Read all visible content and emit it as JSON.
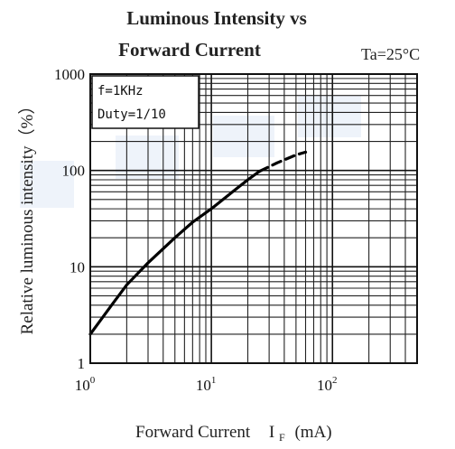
{
  "chart_data": {
    "type": "line",
    "title_line1": "Luminous Intensity vs",
    "title_line2": "Forward Current",
    "condition": "Ta=25°C",
    "xlabel_main": "Forward Current",
    "xlabel_symbol": "I",
    "xlabel_sub": "F",
    "xlabel_unit": "(mA)",
    "ylabel": "Relative luminous intensity（%）",
    "x_scale": "log",
    "y_scale": "log",
    "xlim": [
      1,
      500
    ],
    "ylim": [
      1,
      1000
    ],
    "grid": true,
    "x_ticks": [
      {
        "value": 1,
        "base": "10",
        "exp": "0"
      },
      {
        "value": 10,
        "base": "10",
        "exp": "1"
      },
      {
        "value": 100,
        "base": "10",
        "exp": "2"
      }
    ],
    "y_ticks": [
      {
        "value": 1,
        "label": "1"
      },
      {
        "value": 10,
        "label": "10"
      },
      {
        "value": 100,
        "label": "100"
      },
      {
        "value": 1000,
        "label": "1000"
      }
    ],
    "annotation": {
      "line1": "f=1KHz",
      "line2": "Duty=1/10"
    },
    "series": [
      {
        "style": "solid",
        "points": [
          [
            1,
            2
          ],
          [
            1.5,
            4
          ],
          [
            2,
            6.5
          ],
          [
            3,
            11
          ],
          [
            5,
            20
          ],
          [
            7,
            29
          ],
          [
            10,
            40
          ],
          [
            15,
            60
          ],
          [
            20,
            80
          ],
          [
            25,
            98
          ]
        ]
      },
      {
        "style": "dashed",
        "points": [
          [
            25,
            98
          ],
          [
            35,
            120
          ],
          [
            50,
            145
          ],
          [
            60,
            155
          ]
        ]
      }
    ]
  }
}
